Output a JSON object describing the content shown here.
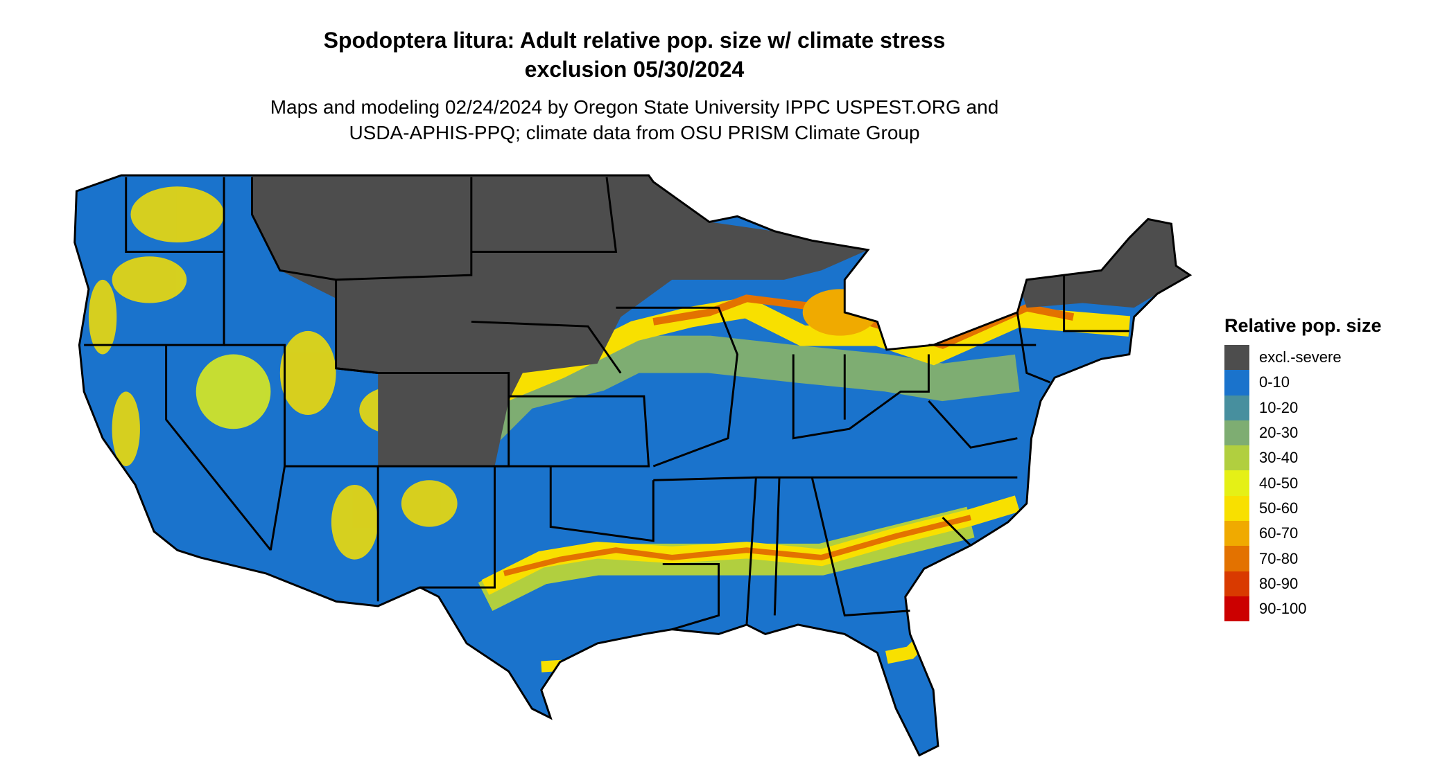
{
  "title_line1": "Spodoptera litura: Adult relative pop. size w/ climate stress",
  "title_line2": "exclusion 05/30/2024",
  "subtitle_line1": "Maps and modeling 02/24/2024 by Oregon State University IPPC USPEST.ORG and",
  "subtitle_line2": "USDA-APHIS-PPQ; climate data from OSU PRISM Climate Group",
  "legend": {
    "title": "Relative pop. size",
    "items": [
      {
        "label": "excl.-severe",
        "color": "#4d4d4d"
      },
      {
        "label": "0-10",
        "color": "#1a73cc"
      },
      {
        "label": "10-20",
        "color": "#478f9e"
      },
      {
        "label": "20-30",
        "color": "#7ead72"
      },
      {
        "label": "30-40",
        "color": "#b1cf3f"
      },
      {
        "label": "40-50",
        "color": "#e5f016"
      },
      {
        "label": "50-60",
        "color": "#f8e000"
      },
      {
        "label": "60-70",
        "color": "#f0aa00"
      },
      {
        "label": "70-80",
        "color": "#e37200"
      },
      {
        "label": "80-90",
        "color": "#d93a00"
      },
      {
        "label": "90-100",
        "color": "#cc0000"
      }
    ]
  }
}
